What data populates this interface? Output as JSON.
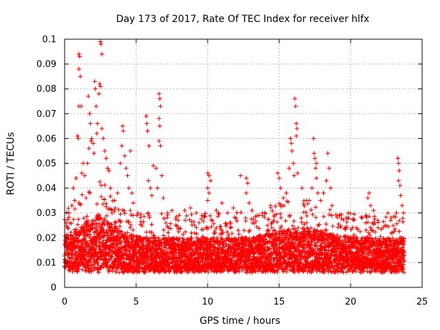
{
  "chart_data": {
    "type": "scatter",
    "title": "Day 173 of 2017, Rate Of TEC Index for receiver hlfx",
    "xlabel": "GPS time / hours",
    "ylabel": "ROTI / TECUs",
    "xlim": [
      0,
      25
    ],
    "ylim": [
      0,
      0.1
    ],
    "xticks": [
      "0",
      "5",
      "10",
      "15",
      "20",
      "25"
    ],
    "yticks": [
      "0",
      "0.01",
      "0.02",
      "0.03",
      "0.04",
      "0.05",
      "0.06",
      "0.07",
      "0.08",
      "0.09",
      "0.1"
    ],
    "grid": true,
    "marker": "plus",
    "color": "#ff0000",
    "series": [
      {
        "values_note": "",
        "points": [
          [
            0.1,
            0.026
          ],
          [
            0.2,
            0.024
          ],
          [
            0.3,
            0.03
          ],
          [
            0.5,
            0.033
          ],
          [
            0.6,
            0.04
          ],
          [
            0.8,
            0.044
          ],
          [
            0.7,
            0.035
          ],
          [
            1.0,
            0.094
          ],
          [
            1.05,
            0.093
          ],
          [
            1.0,
            0.088
          ],
          [
            1.1,
            0.085
          ],
          [
            1.0,
            0.073
          ],
          [
            1.15,
            0.073
          ],
          [
            0.9,
            0.061
          ],
          [
            0.95,
            0.06
          ],
          [
            1.2,
            0.046
          ],
          [
            1.3,
            0.05
          ],
          [
            1.4,
            0.045
          ],
          [
            1.5,
            0.036
          ],
          [
            1.6,
            0.05
          ],
          [
            1.7,
            0.056
          ],
          [
            1.65,
            0.077
          ],
          [
            1.75,
            0.07
          ],
          [
            1.8,
            0.066
          ],
          [
            1.85,
            0.059
          ],
          [
            1.9,
            0.06
          ],
          [
            2.0,
            0.058
          ],
          [
            2.05,
            0.054
          ],
          [
            2.1,
            0.083
          ],
          [
            2.15,
            0.08
          ],
          [
            2.2,
            0.073
          ],
          [
            2.3,
            0.066
          ],
          [
            2.25,
            0.062
          ],
          [
            2.5,
            0.099
          ],
          [
            2.55,
            0.098
          ],
          [
            2.6,
            0.094
          ],
          [
            2.45,
            0.082
          ],
          [
            2.5,
            0.081
          ],
          [
            2.4,
            0.078
          ],
          [
            2.6,
            0.064
          ],
          [
            2.7,
            0.06
          ],
          [
            2.8,
            0.055
          ],
          [
            2.9,
            0.052
          ],
          [
            3.0,
            0.048
          ],
          [
            3.1,
            0.047
          ],
          [
            3.2,
            0.04
          ],
          [
            3.5,
            0.035
          ],
          [
            3.7,
            0.038
          ],
          [
            3.9,
            0.05
          ],
          [
            4.0,
            0.057
          ],
          [
            4.05,
            0.065
          ],
          [
            4.1,
            0.063
          ],
          [
            4.2,
            0.053
          ],
          [
            4.3,
            0.048
          ],
          [
            4.4,
            0.045
          ],
          [
            4.5,
            0.04
          ],
          [
            4.6,
            0.055
          ],
          [
            4.7,
            0.038
          ],
          [
            4.8,
            0.034
          ],
          [
            5.7,
            0.069
          ],
          [
            5.75,
            0.066
          ],
          [
            5.8,
            0.063
          ],
          [
            5.9,
            0.057
          ],
          [
            5.85,
            0.043
          ],
          [
            6.0,
            0.04
          ],
          [
            6.1,
            0.037
          ],
          [
            6.2,
            0.049
          ],
          [
            6.4,
            0.048
          ],
          [
            6.5,
            0.04
          ],
          [
            6.6,
            0.078
          ],
          [
            6.65,
            0.076
          ],
          [
            6.7,
            0.073
          ],
          [
            6.6,
            0.068
          ],
          [
            6.65,
            0.065
          ],
          [
            6.6,
            0.059
          ],
          [
            6.7,
            0.057
          ],
          [
            6.8,
            0.045
          ],
          [
            6.9,
            0.036
          ],
          [
            7.2,
            0.03
          ],
          [
            7.5,
            0.031
          ],
          [
            8.0,
            0.029
          ],
          [
            8.4,
            0.031
          ],
          [
            8.8,
            0.032
          ],
          [
            9.2,
            0.03
          ],
          [
            9.6,
            0.029
          ],
          [
            10.0,
            0.046
          ],
          [
            10.1,
            0.045
          ],
          [
            10.2,
            0.043
          ],
          [
            10.0,
            0.04
          ],
          [
            10.1,
            0.038
          ],
          [
            10.0,
            0.035
          ],
          [
            10.6,
            0.031
          ],
          [
            11.0,
            0.034
          ],
          [
            11.4,
            0.03
          ],
          [
            11.8,
            0.032
          ],
          [
            12.3,
            0.045
          ],
          [
            12.7,
            0.044
          ],
          [
            12.8,
            0.042
          ],
          [
            12.7,
            0.038
          ],
          [
            12.9,
            0.034
          ],
          [
            13.1,
            0.031
          ],
          [
            13.6,
            0.029
          ],
          [
            14.0,
            0.03
          ],
          [
            14.4,
            0.033
          ],
          [
            14.9,
            0.046
          ],
          [
            15.0,
            0.044
          ],
          [
            15.1,
            0.04
          ],
          [
            15.3,
            0.036
          ],
          [
            15.5,
            0.038
          ],
          [
            15.7,
            0.048
          ],
          [
            15.8,
            0.06
          ],
          [
            15.85,
            0.058
          ],
          [
            15.9,
            0.055
          ],
          [
            16.0,
            0.05
          ],
          [
            16.05,
            0.045
          ],
          [
            16.1,
            0.076
          ],
          [
            16.15,
            0.073
          ],
          [
            16.2,
            0.066
          ],
          [
            16.25,
            0.064
          ],
          [
            16.2,
            0.061
          ],
          [
            16.3,
            0.046
          ],
          [
            16.6,
            0.04
          ],
          [
            16.9,
            0.035
          ],
          [
            17.1,
            0.035
          ],
          [
            17.3,
            0.04
          ],
          [
            17.4,
            0.06
          ],
          [
            17.45,
            0.054
          ],
          [
            17.5,
            0.052
          ],
          [
            17.6,
            0.05
          ],
          [
            17.55,
            0.048
          ],
          [
            17.6,
            0.044
          ],
          [
            17.7,
            0.038
          ],
          [
            17.9,
            0.035
          ],
          [
            18.1,
            0.038
          ],
          [
            18.3,
            0.043
          ],
          [
            18.4,
            0.054
          ],
          [
            18.5,
            0.048
          ],
          [
            18.6,
            0.04
          ],
          [
            18.7,
            0.033
          ],
          [
            19.2,
            0.029
          ],
          [
            19.8,
            0.028
          ],
          [
            20.4,
            0.024
          ],
          [
            20.8,
            0.028
          ],
          [
            21.2,
            0.036
          ],
          [
            21.3,
            0.038
          ],
          [
            21.4,
            0.033
          ],
          [
            21.6,
            0.031
          ],
          [
            21.9,
            0.027
          ],
          [
            22.4,
            0.025
          ],
          [
            22.8,
            0.027
          ],
          [
            23.2,
            0.03
          ],
          [
            23.3,
            0.052
          ],
          [
            23.35,
            0.05
          ],
          [
            23.4,
            0.047
          ],
          [
            23.35,
            0.043
          ],
          [
            23.45,
            0.041
          ],
          [
            23.5,
            0.037
          ],
          [
            23.6,
            0.033
          ],
          [
            23.7,
            0.03
          ]
        ]
      }
    ],
    "band": {
      "x_start": 0.0,
      "x_end": 23.75,
      "x_step": 0.042,
      "comment": ""
    }
  }
}
